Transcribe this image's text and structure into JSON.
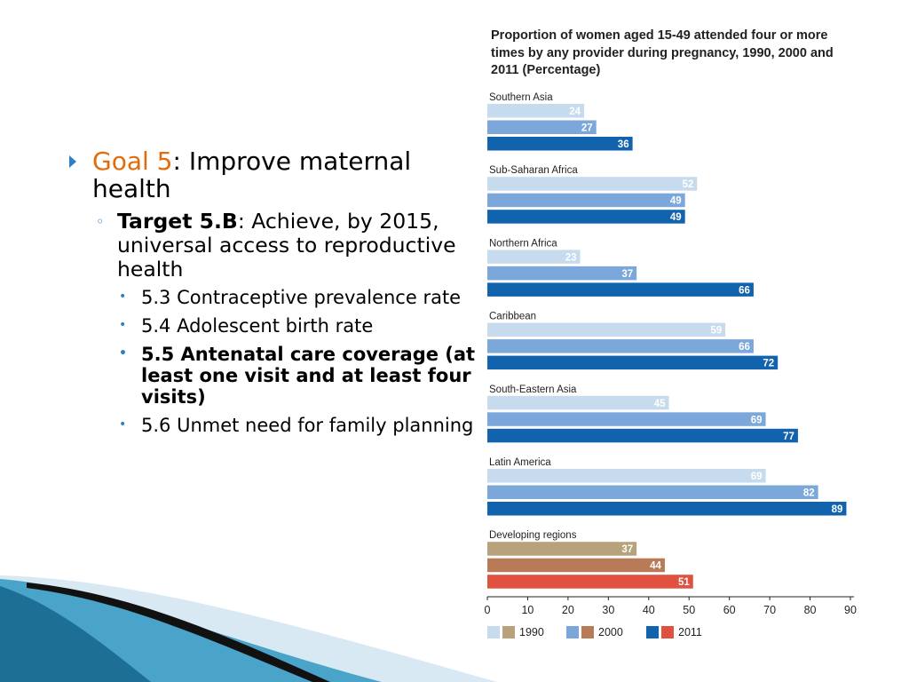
{
  "slide": {
    "goal_prefix": "Goal 5",
    "goal_rest": ":  Improve maternal health",
    "target_label": "Target 5.B",
    "target_rest": ": Achieve, by 2015, universal access to reproductive health",
    "indicators": [
      {
        "text": "5.3 Contraceptive prevalence rate",
        "bold": false
      },
      {
        "text": "5.4 Adolescent birth rate",
        "bold": false
      },
      {
        "text": "5.5 Antenatal care coverage (at least one visit and at least four visits)",
        "bold": true
      },
      {
        "text": "5.6 Unmet need for family planning",
        "bold": false
      }
    ],
    "colors": {
      "bullet": "#2e7fc3",
      "goal": "#e36c0a"
    }
  },
  "chart_data": {
    "type": "bar",
    "orientation": "horizontal",
    "title": "Proportion of women aged 15-49 attended four or more times by any provider during pregnancy, 1990, 2000 and 2011 (Percentage)",
    "categories": [
      "Southern Asia",
      "Sub-Saharan Africa",
      "Northern Africa",
      "Caribbean",
      "South-Eastern Asia",
      "Latin America",
      "Developing regions"
    ],
    "series": [
      {
        "name": "1990",
        "values": [
          24,
          52,
          23,
          59,
          45,
          69,
          37
        ]
      },
      {
        "name": "2000",
        "values": [
          27,
          49,
          37,
          66,
          69,
          82,
          44
        ]
      },
      {
        "name": "2011",
        "values": [
          36,
          49,
          66,
          72,
          77,
          89,
          51
        ]
      }
    ],
    "xlim": [
      0,
      90
    ],
    "xticks": [
      0,
      10,
      20,
      30,
      40,
      50,
      60,
      70,
      80,
      90
    ],
    "xlabel": "",
    "ylabel": "",
    "grid": false,
    "legend_position": "bottom",
    "colors": {
      "region": [
        "#c6dcee",
        "#7ba7da",
        "#1263ad"
      ],
      "developing": [
        "#b7a27c",
        "#b97a58",
        "#e1513f"
      ],
      "label_text": "#231f20",
      "value_text": "#ffffff"
    }
  }
}
